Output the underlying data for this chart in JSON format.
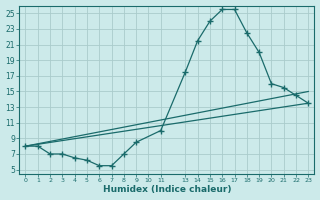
{
  "xlabel": "Humidex (Indice chaleur)",
  "bg_color": "#cceaea",
  "grid_color": "#aacccc",
  "line_color": "#1a6b6b",
  "xlim": [
    -0.5,
    23.5
  ],
  "ylim": [
    4.5,
    26.0
  ],
  "yticks": [
    5,
    7,
    9,
    11,
    13,
    15,
    17,
    19,
    21,
    23,
    25
  ],
  "xtick_positions": [
    0,
    1,
    2,
    3,
    4,
    5,
    6,
    7,
    8,
    9,
    10,
    11,
    13,
    14,
    15,
    16,
    17,
    18,
    19,
    20,
    21,
    22,
    23
  ],
  "xtick_labels": [
    "0",
    "1",
    "2",
    "3",
    "4",
    "5",
    "6",
    "7",
    "8",
    "9",
    "10",
    "11",
    "13",
    "14",
    "15",
    "16",
    "17",
    "18",
    "19",
    "20",
    "21",
    "22",
    "23"
  ],
  "curve1_x": [
    0,
    1,
    2,
    3,
    4,
    5,
    6,
    7,
    8,
    9,
    11,
    13,
    14,
    15,
    16,
    17,
    18,
    19,
    20,
    21,
    22,
    23
  ],
  "curve1_y": [
    8,
    8,
    7,
    7,
    6.5,
    6.2,
    5.5,
    5.5,
    7,
    8.5,
    10,
    17.5,
    21.5,
    24.0,
    25.5,
    25.5,
    22.5,
    20,
    16,
    15.5,
    14.5,
    13.5
  ],
  "curve2_x": [
    0,
    23
  ],
  "curve2_y": [
    8.0,
    15.0
  ],
  "curve3_x": [
    0,
    23
  ],
  "curve3_y": [
    8.0,
    13.5
  ]
}
